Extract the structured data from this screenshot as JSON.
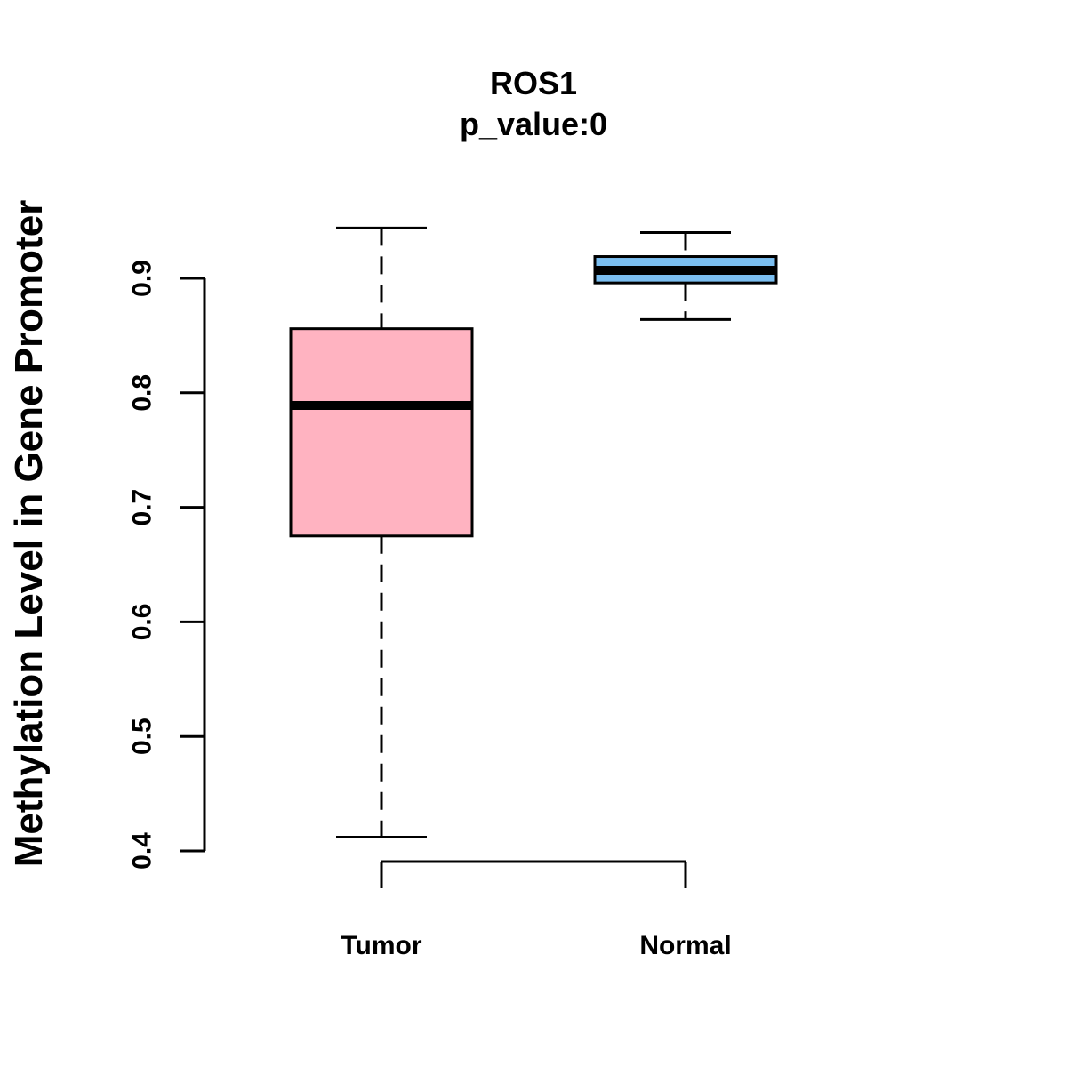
{
  "chart_data": {
    "type": "boxplot",
    "title": "ROS1",
    "subtitle": "p_value:0",
    "xlabel": "",
    "ylabel": "Methylation Level in Gene Promoter",
    "categories": [
      "Tumor",
      "Normal"
    ],
    "ylim": [
      0.4,
      0.9
    ],
    "y_ticks": [
      "0.4",
      "0.5",
      "0.6",
      "0.7",
      "0.8",
      "0.9"
    ],
    "series": [
      {
        "name": "Tumor",
        "whisker_low": 0.412,
        "q1": 0.675,
        "median": 0.789,
        "q3": 0.856,
        "whisker_high": 0.944,
        "color": "#FFB3C1"
      },
      {
        "name": "Normal",
        "whisker_low": 0.864,
        "q1": 0.896,
        "median": 0.907,
        "q3": 0.919,
        "whisker_high": 0.94,
        "color": "#7BBEF0"
      }
    ],
    "grid": false
  }
}
